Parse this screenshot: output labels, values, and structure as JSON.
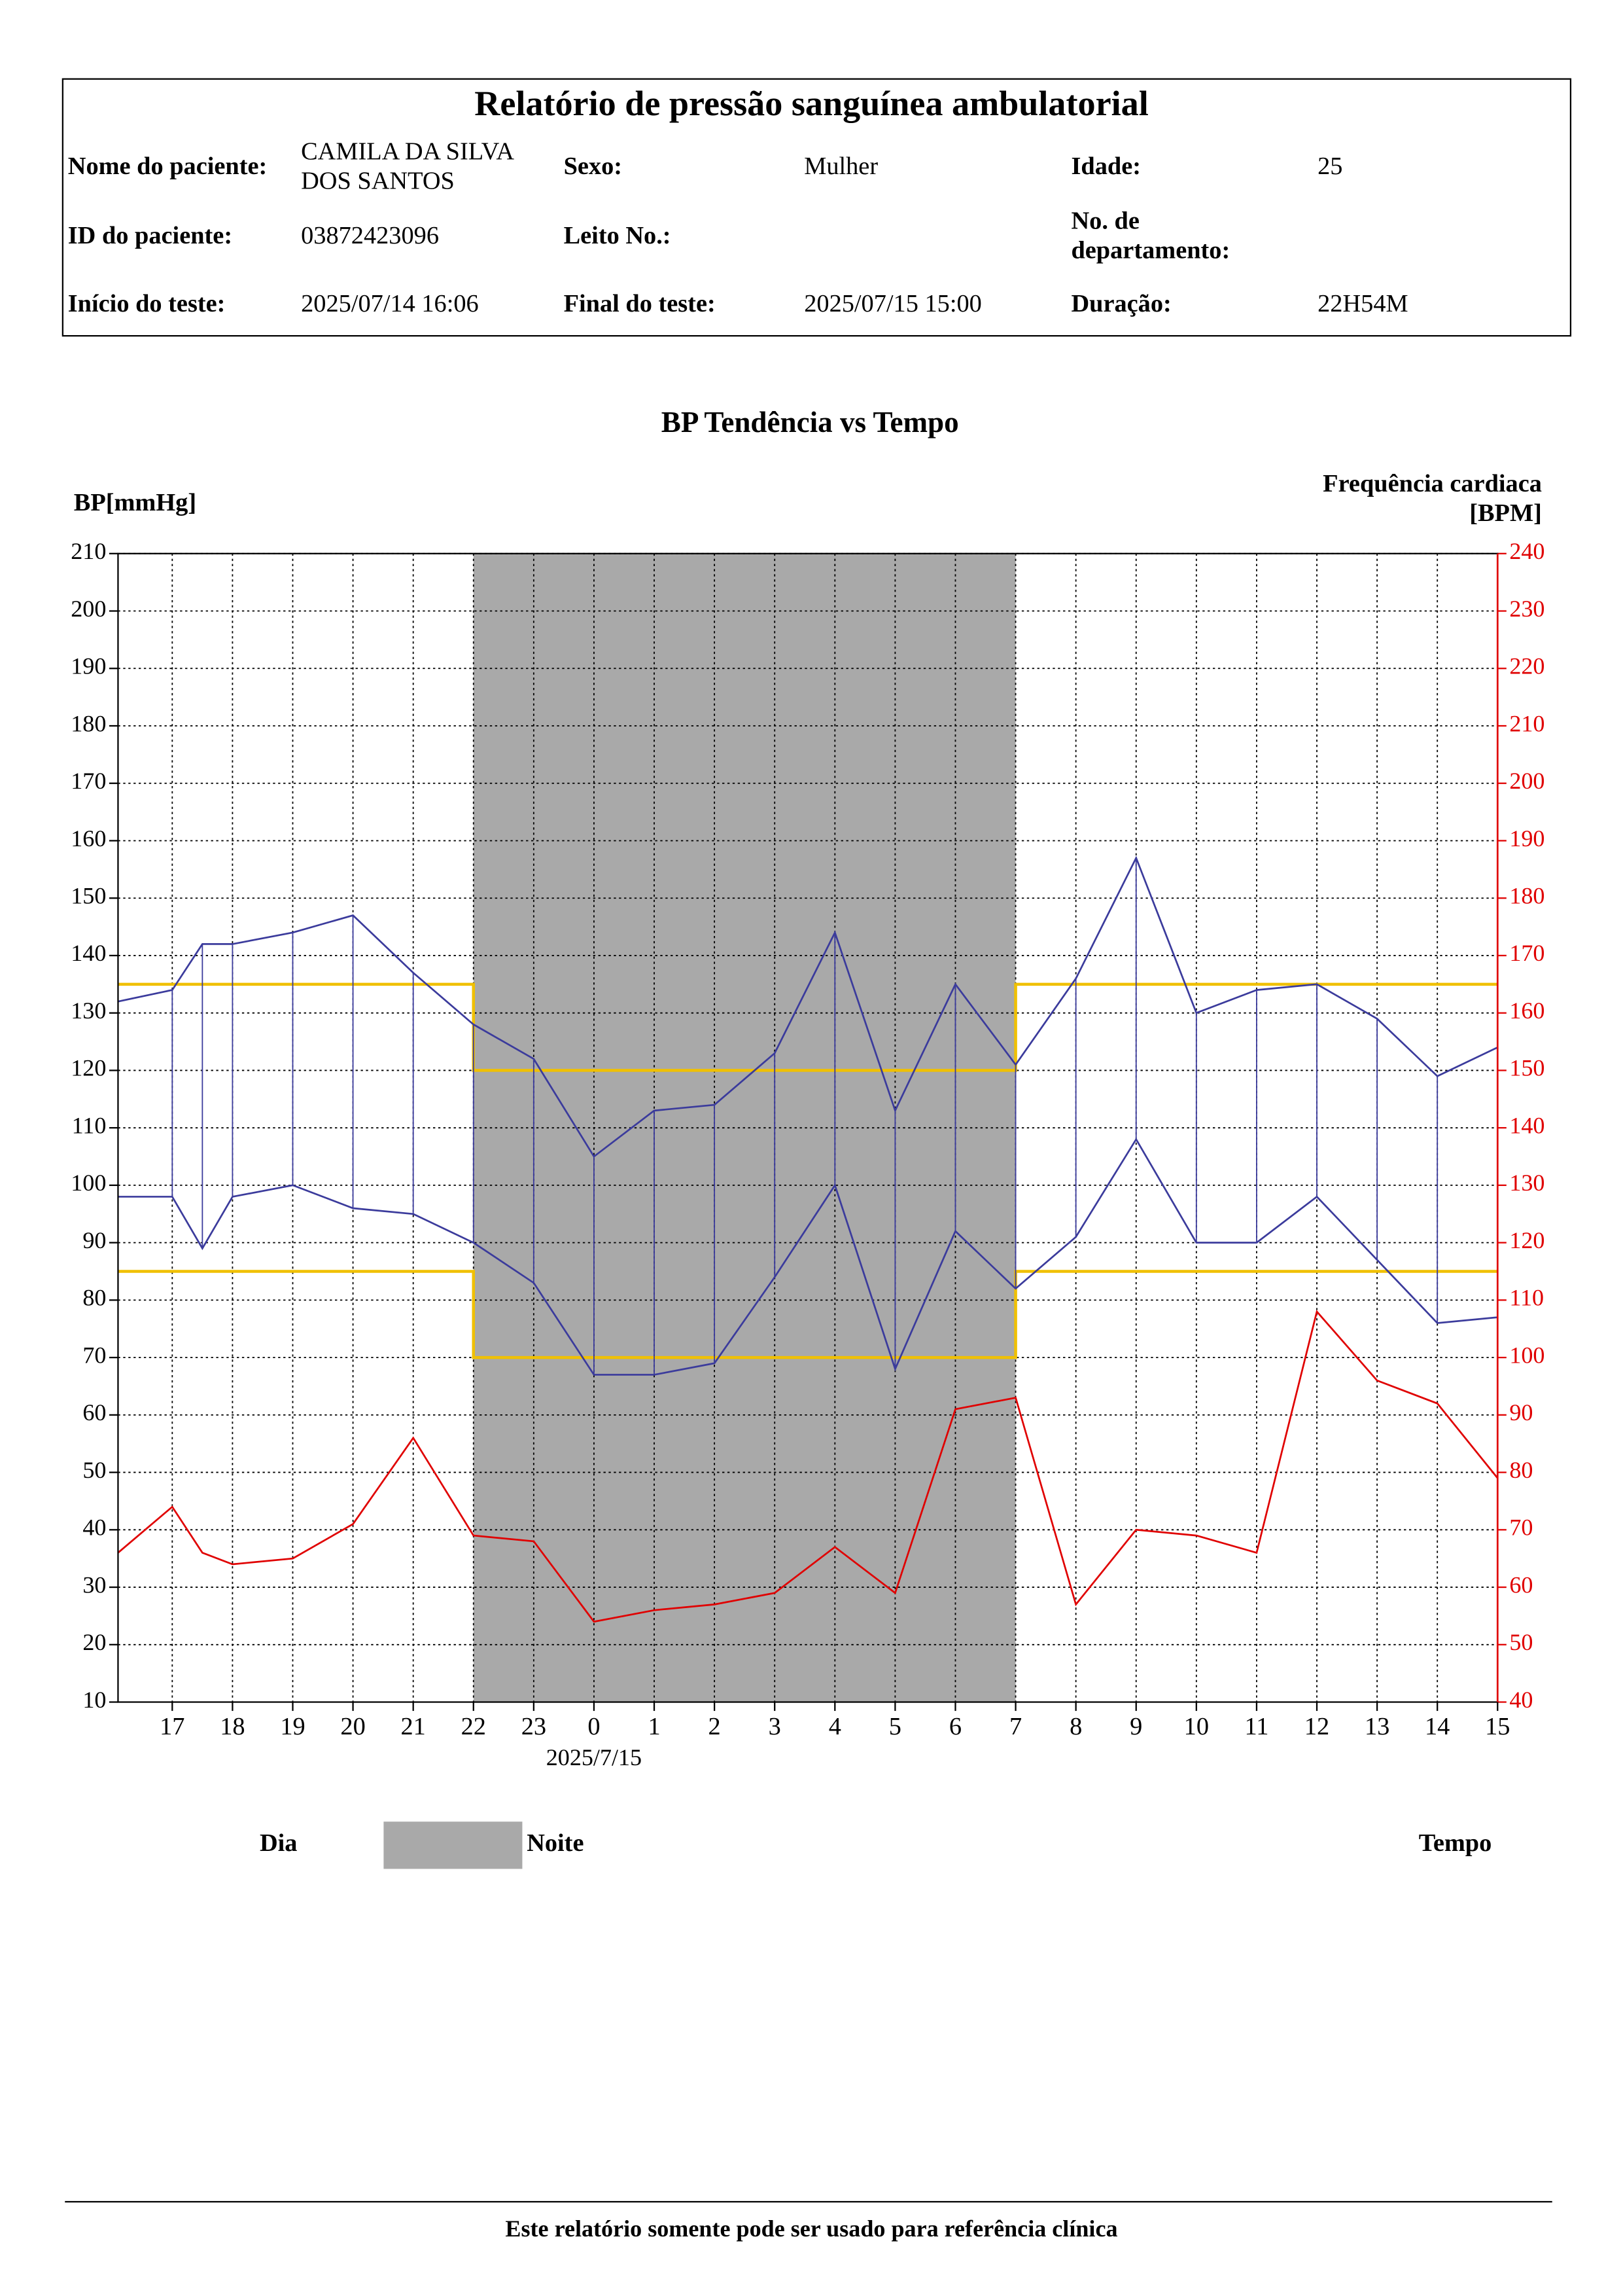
{
  "header": {
    "title": "Relatório de pressão sanguínea ambulatorial",
    "fields": [
      {
        "label": "Nome do paciente:",
        "value": "CAMILA DA SILVA DOS SANTOS"
      },
      {
        "label": "Sexo:",
        "value": "Mulher"
      },
      {
        "label": "Idade:",
        "value": "25"
      },
      {
        "label": "ID do paciente:",
        "value": "03872423096"
      },
      {
        "label": "Leito No.:"
      },
      {
        "label": "No. de departamento:"
      },
      {
        "label": "Início do teste:",
        "value": "2025/07/14 16:06"
      },
      {
        "label": "Final do teste:",
        "value": "2025/07/15 15:00"
      },
      {
        "label": "Duração:",
        "value": "22H54M"
      }
    ]
  },
  "chart_data": {
    "type": "line",
    "title": "BP Tendência vs Tempo",
    "y_label": "BP[mmHg]",
    "y2_label": "Frequência cardiaca [BPM]",
    "x": [
      16.1,
      17,
      17.5,
      18,
      19,
      20,
      21,
      22,
      23,
      24,
      25,
      26,
      27,
      28,
      29,
      30,
      31,
      32,
      33,
      34,
      35,
      36,
      37,
      38,
      39
    ],
    "xlim": [
      16.1,
      39
    ],
    "xticks": [
      {
        "value": 17,
        "label": "17"
      },
      {
        "value": 18,
        "label": "18"
      },
      {
        "value": 19,
        "label": "19"
      },
      {
        "value": 20,
        "label": "20"
      },
      {
        "value": 21,
        "label": "21"
      },
      {
        "value": 22,
        "label": "22"
      },
      {
        "value": 23,
        "label": "23"
      },
      {
        "value": 24,
        "label": "0"
      },
      {
        "value": 25,
        "label": "1"
      },
      {
        "value": 26,
        "label": "2"
      },
      {
        "value": 27,
        "label": "3"
      },
      {
        "value": 28,
        "label": "4"
      },
      {
        "value": 29,
        "label": "5"
      },
      {
        "value": 30,
        "label": "6"
      },
      {
        "value": 31,
        "label": "7"
      },
      {
        "value": 32,
        "label": "8"
      },
      {
        "value": 33,
        "label": "9"
      },
      {
        "value": 34,
        "label": "10"
      },
      {
        "value": 35,
        "label": "11"
      },
      {
        "value": 36,
        "label": "12"
      },
      {
        "value": 37,
        "label": "13"
      },
      {
        "value": 38,
        "label": "14"
      },
      {
        "value": 39,
        "label": "15"
      }
    ],
    "date_marker": {
      "value": 24,
      "label": "2025/7/15"
    },
    "ylim": [
      10,
      210
    ],
    "yticks": [
      10,
      20,
      30,
      40,
      50,
      60,
      70,
      80,
      90,
      100,
      110,
      120,
      130,
      140,
      150,
      160,
      170,
      180,
      190,
      200,
      210
    ],
    "y2lim": [
      40,
      240
    ],
    "y2ticks": [
      40,
      50,
      60,
      70,
      80,
      90,
      100,
      110,
      120,
      130,
      140,
      150,
      160,
      170,
      180,
      190,
      200,
      210,
      220,
      230,
      240
    ],
    "grid": true,
    "series": [
      {
        "color": "#3b3b9c",
        "values": [
          132,
          134,
          142,
          142,
          144,
          147,
          137,
          128,
          122,
          105,
          113,
          114,
          123,
          144,
          113,
          135,
          121,
          136,
          157,
          130,
          134,
          135,
          129,
          119,
          124
        ]
      },
      {
        "color": "#3b3b9c",
        "values": [
          98,
          98,
          89,
          98,
          100,
          96,
          95,
          90,
          83,
          67,
          67,
          69,
          84,
          100,
          68,
          92,
          82,
          91,
          108,
          90,
          90,
          98,
          87,
          76,
          77
        ]
      },
      {
        "color": "#e00000",
        "axis": "y2",
        "values": [
          66,
          74,
          66,
          64,
          65,
          71,
          86,
          69,
          68,
          54,
          56,
          57,
          59,
          67,
          59,
          91,
          93,
          57,
          70,
          69,
          66,
          108,
          96,
          92,
          79
        ]
      }
    ],
    "night": {
      "start": 22,
      "end": 31,
      "color": "#a9a9a9"
    },
    "thresholds": {
      "color": "#f0c000",
      "day": {
        "systolic": 135,
        "diastolic": 85
      },
      "night": {
        "systolic": 120,
        "diastolic": 70
      }
    },
    "legend": {
      "day": "Dia",
      "night": "Noite",
      "time": "Tempo"
    }
  },
  "footer": "Este relatório somente pode ser usado para referência clínica"
}
